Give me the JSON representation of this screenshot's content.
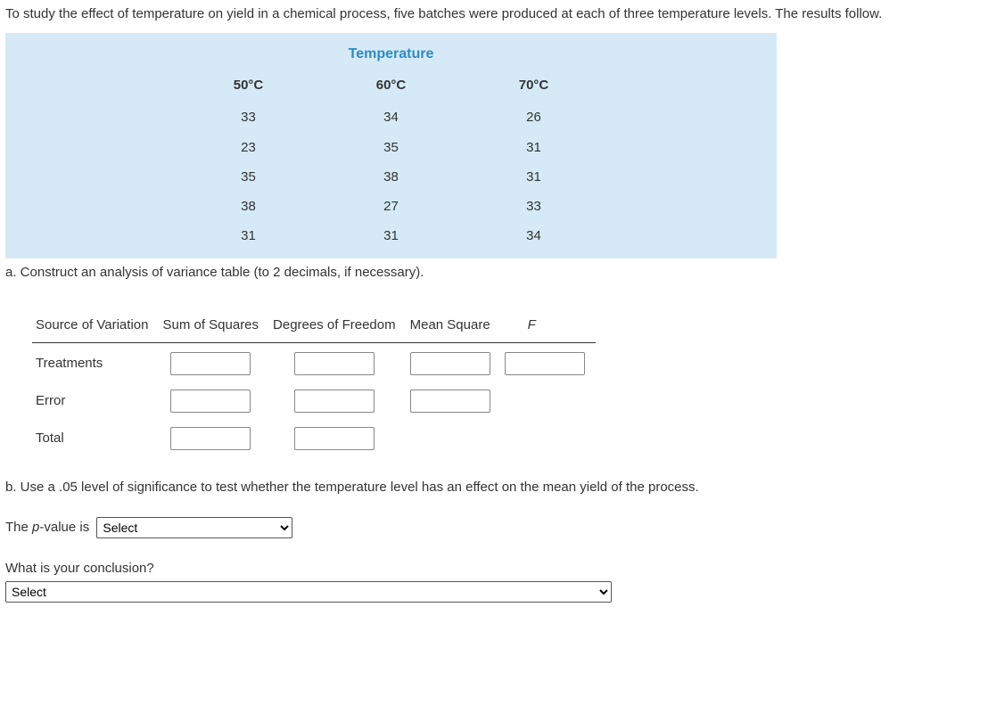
{
  "intro": "To study the effect of temperature on yield in a chemical process, five batches were produced at each of three temperature levels. The results follow.",
  "temp_table": {
    "title": "Temperature",
    "columns": [
      {
        "header": "50°C",
        "values": [
          "33",
          "23",
          "35",
          "38",
          "31"
        ]
      },
      {
        "header": "60°C",
        "values": [
          "34",
          "35",
          "38",
          "27",
          "31"
        ]
      },
      {
        "header": "70°C",
        "values": [
          "26",
          "31",
          "31",
          "33",
          "34"
        ]
      }
    ]
  },
  "part_a_text": "a. Construct an analysis of variance table (to 2 decimals, if necessary).",
  "anova": {
    "headers": {
      "source": "Source of Variation",
      "ss": "Sum of Squares",
      "df": "Degrees of Freedom",
      "ms": "Mean Square",
      "f": "F"
    },
    "rows": [
      {
        "label": "Treatments",
        "inputs": [
          "ss",
          "df",
          "ms",
          "f"
        ]
      },
      {
        "label": "Error",
        "inputs": [
          "ss",
          "df",
          "ms"
        ]
      },
      {
        "label": "Total",
        "inputs": [
          "ss",
          "df"
        ]
      }
    ]
  },
  "part_b_text": "b. Use a .05 level of significance to test whether the temperature level has an effect on the mean yield of the process.",
  "pvalue_prefix": "The ",
  "pvalue_label_italic": "p",
  "pvalue_suffix": "-value is",
  "pvalue_select_placeholder": "Select",
  "conclusion_question": "What is your conclusion?",
  "conclusion_select_placeholder": "Select"
}
